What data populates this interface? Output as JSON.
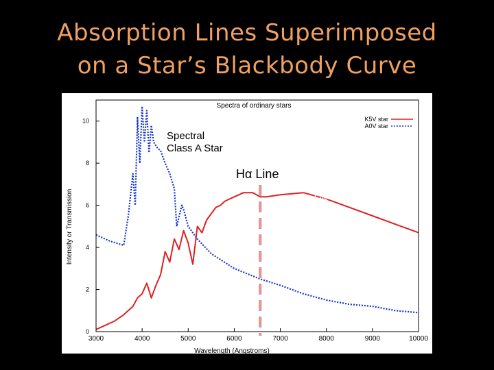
{
  "slide": {
    "title_line1": "Absorption Lines Superimposed",
    "title_line2": "on a Star’s Blackbody Curve"
  },
  "annotations": {
    "a_star_line1": "Spectral",
    "a_star_line2": "Class A Star",
    "halpha_symbol": "Hα",
    "halpha_word": "Line",
    "k_star_line1": "Spectral",
    "k_star_line2": "Class K Star"
  },
  "colors": {
    "title": "#f0a060",
    "k_series": "#e02020",
    "a_series": "#1030d0",
    "marker": "#e89090"
  },
  "chart_data": {
    "type": "line",
    "title": "Spectra of ordinary stars",
    "xlabel": "Wavelength (Angstroms)",
    "ylabel": "Intensity or Transmission",
    "xlim": [
      3000,
      10000
    ],
    "ylim": [
      0,
      11
    ],
    "x_ticks": [
      3000,
      4000,
      5000,
      6000,
      7000,
      8000,
      9000,
      10000
    ],
    "y_ticks": [
      0,
      2,
      4,
      6,
      8,
      10
    ],
    "legend_position": "top-right",
    "marker_line": {
      "label": "Hα",
      "x": 6563
    },
    "series": [
      {
        "name": "K5V star",
        "style": "solid",
        "x": [
          3000,
          3200,
          3400,
          3600,
          3800,
          3900,
          4000,
          4100,
          4200,
          4300,
          4400,
          4500,
          4600,
          4700,
          4800,
          4900,
          5000,
          5100,
          5200,
          5300,
          5400,
          5500,
          5600,
          5700,
          5800,
          5900,
          6000,
          6200,
          6400,
          6563,
          6700,
          7000,
          7500,
          8000,
          8500,
          9000,
          9500,
          10000
        ],
        "values": [
          0.1,
          0.3,
          0.5,
          0.8,
          1.2,
          1.6,
          1.8,
          2.3,
          1.6,
          2.2,
          2.7,
          3.8,
          3.3,
          4.4,
          3.9,
          4.8,
          4.2,
          3.2,
          5.0,
          4.7,
          5.3,
          5.6,
          5.9,
          6.0,
          6.2,
          6.3,
          6.4,
          6.6,
          6.6,
          6.4,
          6.4,
          6.5,
          6.6,
          6.3,
          5.9,
          5.5,
          5.1,
          4.7
        ]
      },
      {
        "name": "A0V star",
        "style": "dotted",
        "x": [
          3000,
          3300,
          3600,
          3700,
          3800,
          3850,
          3900,
          3950,
          4000,
          4050,
          4100,
          4150,
          4200,
          4250,
          4340,
          4400,
          4500,
          4600,
          4700,
          4750,
          4861,
          4900,
          5000,
          5200,
          5500,
          6000,
          6563,
          7000,
          7500,
          8000,
          8500,
          9000,
          9500,
          10000
        ],
        "values": [
          4.6,
          4.3,
          4.1,
          5.5,
          7.5,
          6.0,
          10.2,
          8.0,
          10.7,
          9.0,
          10.5,
          8.5,
          9.8,
          9.0,
          8.7,
          8.6,
          8.0,
          7.5,
          6.8,
          5.0,
          6.0,
          5.8,
          5.0,
          4.4,
          3.7,
          3.0,
          2.5,
          2.2,
          1.8,
          1.5,
          1.3,
          1.2,
          1.0,
          0.9
        ]
      }
    ]
  }
}
